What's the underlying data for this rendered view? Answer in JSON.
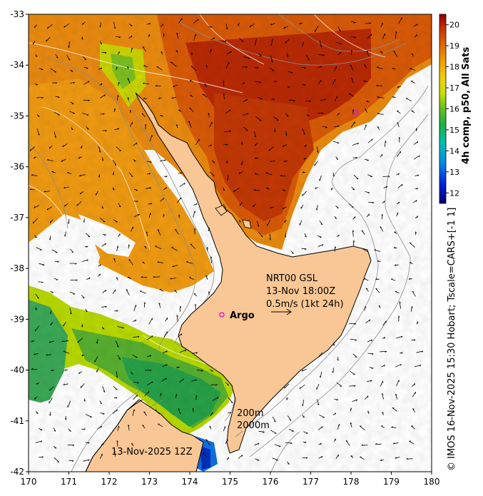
{
  "map": {
    "lon_ticks": [
      "170",
      "171",
      "172",
      "173",
      "174",
      "175",
      "176",
      "177",
      "178",
      "179",
      "180"
    ],
    "lat_ticks": [
      "-33",
      "-34",
      "-35",
      "-36",
      "-37",
      "-38",
      "-39",
      "-40",
      "-41",
      "-42"
    ],
    "lon_range": [
      170,
      180
    ],
    "lat_range": [
      -42,
      -33
    ],
    "colors": {
      "land": "#f9c795",
      "coast": "#000000",
      "isobath": "#8c8c8c",
      "argo_marker": "#e020c0"
    }
  },
  "annotations": {
    "product_line1": "NRT00 GSL",
    "product_line2": "13-Nov 18:00Z",
    "scale_arrow_label": "0.5m/s (1kt 24h)",
    "argo_label": "Argo",
    "depth_200": "200m",
    "depth_2000": "2000m",
    "date_label": "13-Nov-2025 12Z"
  },
  "colorbar": {
    "label": "4h comp, p50, All Sats",
    "ticks": [
      "12",
      "13",
      "14",
      "15",
      "16",
      "17",
      "18",
      "19",
      "20"
    ],
    "range": [
      11.5,
      20.5
    ]
  },
  "footer": {
    "credit": "© IMOS 16-Nov-2025 15:30 Hobart; Tscale=CARS+[-1 1]"
  }
}
